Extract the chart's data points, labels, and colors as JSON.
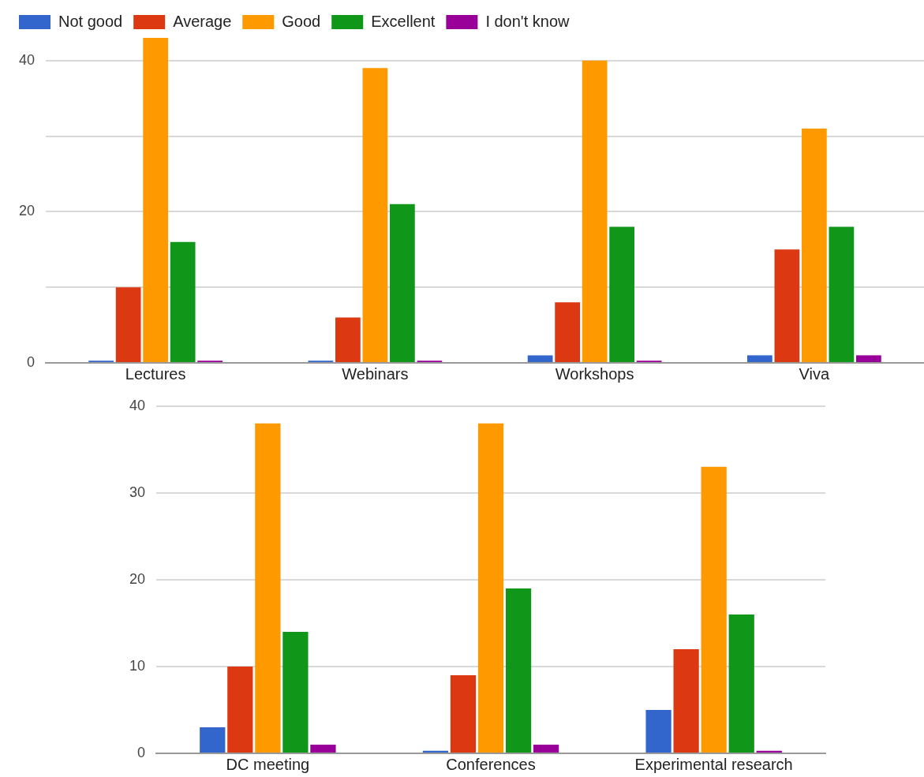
{
  "chart_data": [
    {
      "type": "bar",
      "categories": [
        "Lectures",
        "Webinars",
        "Workshops",
        "Viva"
      ],
      "legend": "top left",
      "grid": "y",
      "ylim": [
        0,
        43
      ],
      "yticks": [
        0,
        {
          "value": 10,
          "label": null
        },
        20,
        {
          "value": 30,
          "label": null
        },
        40
      ],
      "series": [
        {
          "name": "Not good",
          "color": "#3366cc",
          "values": [
            0.3,
            0.3,
            1,
            1
          ]
        },
        {
          "name": "Average",
          "color": "#dc3912",
          "values": [
            10,
            6,
            8,
            15
          ]
        },
        {
          "name": "Good",
          "color": "#ff9900",
          "values": [
            43,
            39,
            40,
            31
          ]
        },
        {
          "name": "Excellent",
          "color": "#109618",
          "values": [
            16,
            21,
            18,
            18
          ]
        },
        {
          "name": "I don't know",
          "color": "#990099",
          "values": [
            0.3,
            0.3,
            0.3,
            1
          ]
        }
      ]
    },
    {
      "type": "bar",
      "categories": [
        "DC meeting",
        "Conferences",
        "Experimental research"
      ],
      "grid": "y",
      "ylim": [
        0,
        40
      ],
      "yticks": [
        0,
        10,
        20,
        30,
        40
      ],
      "series": [
        {
          "color": "#3366cc",
          "values": [
            3,
            0.3,
            5
          ]
        },
        {
          "color": "#dc3912",
          "values": [
            10,
            9,
            12
          ]
        },
        {
          "color": "#ff9900",
          "values": [
            38,
            38,
            33
          ]
        },
        {
          "color": "#109618",
          "values": [
            14,
            19,
            16
          ]
        },
        {
          "color": "#990099",
          "values": [
            1,
            1,
            0.3
          ]
        }
      ]
    }
  ]
}
